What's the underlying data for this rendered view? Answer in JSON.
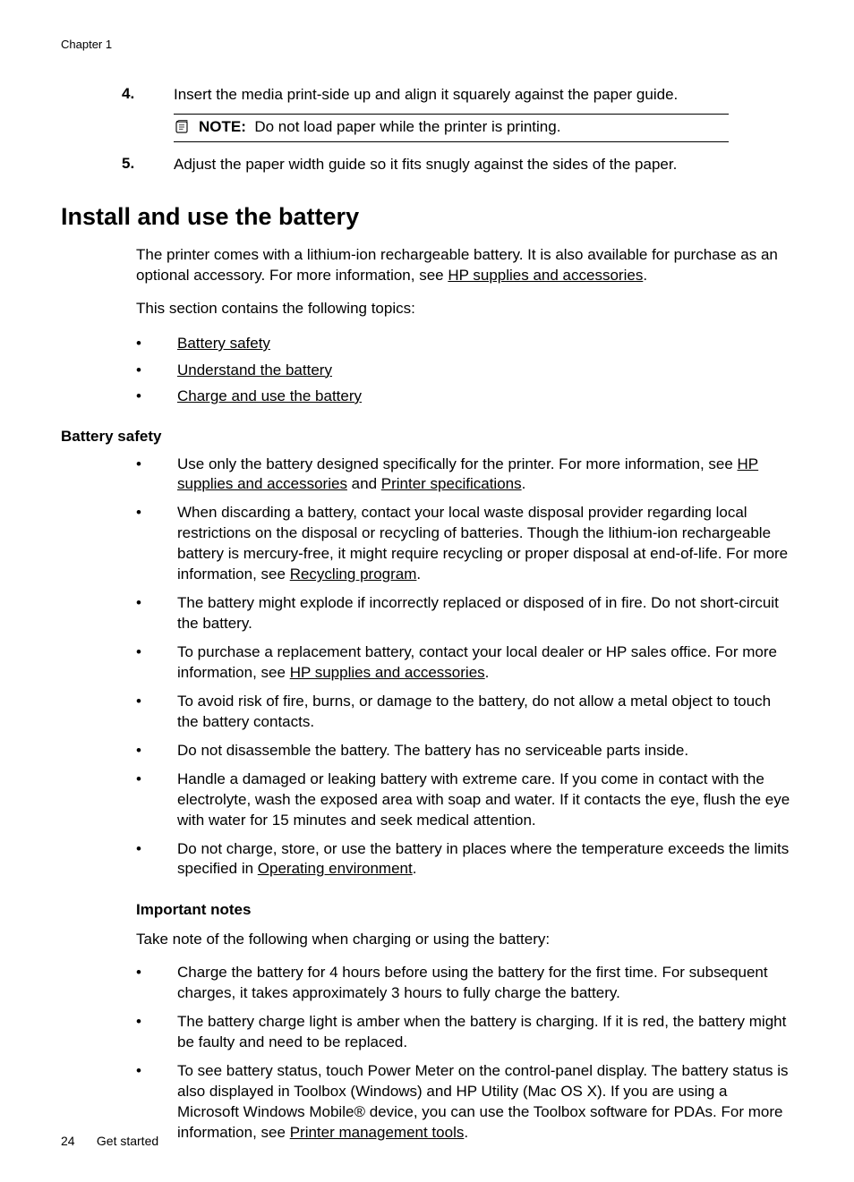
{
  "chapter_label": "Chapter 1",
  "num_items": [
    {
      "num": "4.",
      "text": "Insert the media print-side up and align it squarely against the paper guide."
    },
    {
      "num": "5.",
      "text": "Adjust the paper width guide so it fits snugly against the sides of the paper."
    }
  ],
  "note_label": "NOTE:",
  "note_text": "Do not load paper while the printer is printing.",
  "h1": "Install and use the battery",
  "intro_pre": "The printer comes with a lithium-ion rechargeable battery. It is also available for purchase as an optional accessory. For more information, see ",
  "intro_link": "HP supplies and accessories",
  "intro_post": ".",
  "section_intro": "This section contains the following topics:",
  "topic_links": [
    "Battery safety",
    "Understand the battery",
    "Charge and use the battery"
  ],
  "h2_safety": "Battery safety",
  "safety": [
    {
      "parts": [
        {
          "t": "Use only the battery designed specifically for the printer. For more information, see "
        },
        {
          "t": "HP supplies and accessories",
          "link": true
        },
        {
          "t": " and "
        },
        {
          "t": "Printer specifications",
          "link": true
        },
        {
          "t": "."
        }
      ]
    },
    {
      "parts": [
        {
          "t": "When discarding a battery, contact your local waste disposal provider regarding local restrictions on the disposal or recycling of batteries. Though the lithium-ion rechargeable battery is mercury-free, it might require recycling or proper disposal at end-of-life. For more information, see "
        },
        {
          "t": "Recycling program",
          "link": true
        },
        {
          "t": "."
        }
      ]
    },
    {
      "parts": [
        {
          "t": "The battery might explode if incorrectly replaced or disposed of in fire. Do not short-circuit the battery."
        }
      ]
    },
    {
      "parts": [
        {
          "t": "To purchase a replacement battery, contact your local dealer or HP sales office. For more information, see "
        },
        {
          "t": "HP supplies and accessories",
          "link": true
        },
        {
          "t": "."
        }
      ]
    },
    {
      "parts": [
        {
          "t": "To avoid risk of fire, burns, or damage to the battery, do not allow a metal object to touch the battery contacts."
        }
      ]
    },
    {
      "parts": [
        {
          "t": "Do not disassemble the battery. The battery has no serviceable parts inside."
        }
      ]
    },
    {
      "parts": [
        {
          "t": "Handle a damaged or leaking battery with extreme care. If you come in contact with the electrolyte, wash the exposed area with soap and water. If it contacts the eye, flush the eye with water for 15 minutes and seek medical attention."
        }
      ]
    },
    {
      "parts": [
        {
          "t": "Do not charge, store, or use the battery in places where the temperature exceeds the limits specified in "
        },
        {
          "t": "Operating environment",
          "link": true
        },
        {
          "t": "."
        }
      ]
    }
  ],
  "h3_notes": "Important notes",
  "notes_intro": "Take note of the following when charging or using the battery:",
  "notes": [
    {
      "parts": [
        {
          "t": "Charge the battery for 4 hours before using the battery for the first time. For subsequent charges, it takes approximately 3 hours to fully charge the battery."
        }
      ]
    },
    {
      "parts": [
        {
          "t": "The battery charge light is amber when the battery is charging. If it is red, the battery might be faulty and need to be replaced."
        }
      ]
    },
    {
      "parts": [
        {
          "t": "To see battery status, touch Power Meter on the control-panel display. The battery status is also displayed in Toolbox (Windows) and HP Utility (Mac OS X). If you are using a Microsoft Windows Mobile® device, you can use the Toolbox software for PDAs. For more information, see "
        },
        {
          "t": "Printer management tools",
          "link": true
        },
        {
          "t": "."
        }
      ]
    }
  ],
  "page_number": "24",
  "footer_title": "Get started"
}
